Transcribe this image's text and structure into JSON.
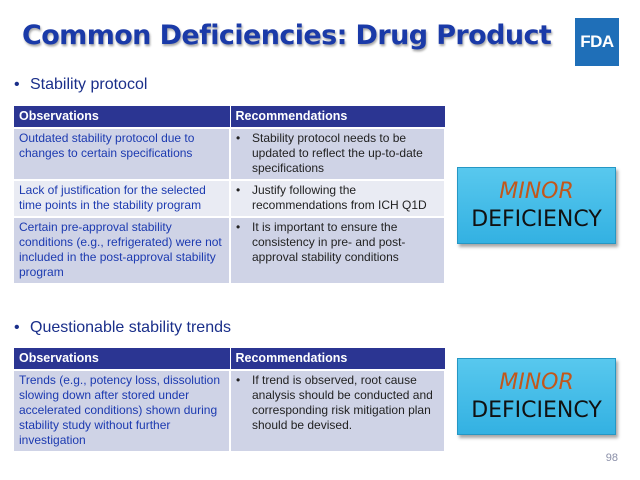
{
  "slide": {
    "title": "Common Deficiencies: Drug Product",
    "logo_text": "FDA",
    "page_number": "98"
  },
  "section1": {
    "bullet": "Stability protocol",
    "headers": {
      "observations": "Observations",
      "recommendations": "Recommendations"
    },
    "rows": [
      {
        "observation": "Outdated stability protocol due to changes to certain specifications",
        "recommendation": "Stability protocol needs to be updated to reflect the up-to-date specifications"
      },
      {
        "observation": "Lack of justification for the selected time points in the stability program",
        "recommendation": "Justify following the recommendations from ICH Q1D"
      },
      {
        "observation": "Certain pre-approval stability conditions (e.g., refrigerated) were not included in the post-approval stability program",
        "recommendation": "It is important to ensure the consistency in pre- and post-approval stability conditions"
      }
    ],
    "badge": {
      "line1": "MINOR",
      "line2": "DEFICIENCY"
    }
  },
  "section2": {
    "bullet": "Questionable stability trends",
    "headers": {
      "observations": "Observations",
      "recommendations": "Recommendations"
    },
    "rows": [
      {
        "observation": "Trends (e.g., potency loss, dissolution slowing down after stored under accelerated conditions) shown during stability study without further investigation",
        "recommendation": "If trend is observed, root cause analysis should be conducted and corresponding risk mitigation plan should be devised."
      }
    ],
    "badge": {
      "line1": "MINOR",
      "line2": "DEFICIENCY"
    }
  },
  "colors": {
    "title": "#1a3aa8",
    "table_header": "#2b3592",
    "row_dark": "#cfd3e6",
    "row_light": "#e9ebf3",
    "badge_bg": "#3ab5e5",
    "badge_minor": "#c2571b",
    "fda_logo": "#1f6fb8"
  },
  "icons": {
    "bullet": "bullet-dot-icon",
    "recommendation_marker": "bullet-dot-icon"
  }
}
